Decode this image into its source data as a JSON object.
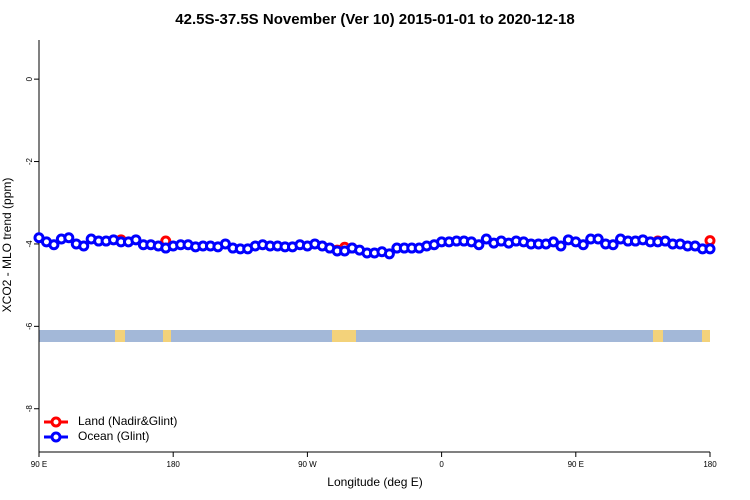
{
  "chart_data": {
    "type": "scatter",
    "title": "42.5S-37.5S November (Ver 10)   2015-01-01 to 2020-12-18",
    "x_label": "Longitude (deg E)",
    "y_label": "XCO2 - MLO trend (ppm)",
    "x": [
      90,
      95,
      100,
      105,
      110,
      115,
      120,
      125,
      130,
      135,
      140,
      145,
      150,
      155,
      160,
      165,
      170,
      175,
      180,
      185,
      190,
      195,
      200,
      205,
      210,
      215,
      220,
      225,
      230,
      235,
      240,
      245,
      250,
      255,
      260,
      265,
      270,
      275,
      280,
      285,
      290,
      295,
      300,
      305,
      310,
      315,
      320,
      325,
      330,
      335,
      340,
      345,
      350,
      355,
      360,
      365,
      370,
      375,
      380,
      385,
      390,
      395,
      400,
      405,
      410,
      415,
      420,
      425,
      430,
      435,
      440,
      445,
      450,
      455,
      460,
      465,
      470,
      475,
      480,
      485,
      490,
      495,
      500,
      505,
      510,
      515,
      520,
      525,
      530,
      535,
      540
    ],
    "series": [
      {
        "name": "Land (Nadir&Glint)",
        "color": "#ff0000",
        "values": [
          null,
          null,
          null,
          null,
          null,
          null,
          null,
          null,
          null,
          null,
          null,
          -3.9,
          null,
          null,
          null,
          null,
          null,
          -3.93,
          null,
          null,
          null,
          null,
          null,
          null,
          null,
          null,
          null,
          null,
          null,
          null,
          null,
          null,
          null,
          null,
          null,
          null,
          null,
          null,
          null,
          null,
          -4.15,
          -4.08,
          -4.1,
          null,
          null,
          null,
          null,
          null,
          null,
          null,
          null,
          null,
          null,
          null,
          null,
          null,
          null,
          null,
          null,
          null,
          null,
          null,
          null,
          null,
          null,
          null,
          null,
          null,
          null,
          null,
          null,
          null,
          null,
          null,
          null,
          null,
          null,
          null,
          null,
          null,
          null,
          null,
          null,
          -3.93,
          null,
          null,
          null,
          null,
          null,
          null,
          -3.92
        ]
      },
      {
        "name": "Ocean (Glint)",
        "color": "#0000ff",
        "values": [
          -3.85,
          -3.95,
          -4.02,
          -3.88,
          -3.85,
          -4.0,
          -4.05,
          -3.88,
          -3.93,
          -3.93,
          -3.9,
          -3.95,
          -3.95,
          -3.9,
          -4.02,
          -4.02,
          -4.05,
          -4.1,
          -4.05,
          -4.02,
          -4.02,
          -4.07,
          -4.05,
          -4.05,
          -4.07,
          -4.0,
          -4.1,
          -4.12,
          -4.12,
          -4.05,
          -4.02,
          -4.05,
          -4.05,
          -4.07,
          -4.07,
          -4.02,
          -4.05,
          -4.0,
          -4.05,
          -4.1,
          -4.17,
          -4.17,
          -4.1,
          -4.15,
          -4.22,
          -4.22,
          -4.19,
          -4.24,
          -4.1,
          -4.1,
          -4.1,
          -4.1,
          -4.05,
          -4.02,
          -3.95,
          -3.95,
          -3.93,
          -3.93,
          -3.95,
          -4.02,
          -3.88,
          -3.98,
          -3.93,
          -3.98,
          -3.93,
          -3.95,
          -4.0,
          -4.0,
          -4.0,
          -3.95,
          -4.05,
          -3.9,
          -3.95,
          -4.02,
          -3.88,
          -3.88,
          -4.0,
          -4.02,
          -3.88,
          -3.93,
          -3.93,
          -3.9,
          -3.95,
          -3.95,
          -3.93,
          -4.0,
          -4.0,
          -4.05,
          -4.05,
          -4.12,
          -4.12
        ]
      }
    ],
    "xlim": [
      90,
      540
    ],
    "xticks": [
      {
        "value": 90,
        "label": "90 E"
      },
      180,
      {
        "value": 270,
        "label": "90 W"
      },
      {
        "value": 360,
        "label": "0"
      },
      {
        "value": 450,
        "label": "90 E"
      },
      {
        "value": 540,
        "label": "180"
      }
    ],
    "ylim": [
      -9.05,
      0.95
    ],
    "yticks": [
      0,
      -2,
      -4,
      -6,
      -8
    ],
    "grid": false,
    "legend": "bottom-left"
  }
}
